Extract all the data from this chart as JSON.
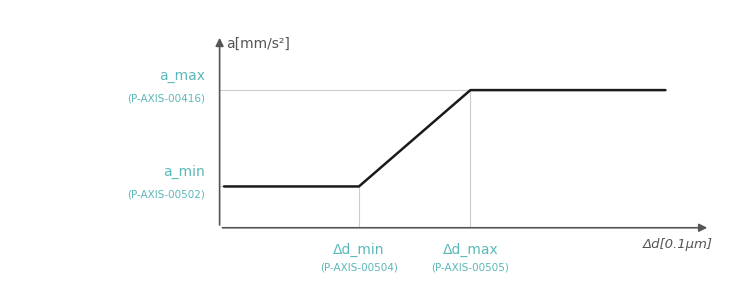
{
  "bg_color": "#ffffff",
  "line_color": "#1a1a1a",
  "grid_line_color": "#cccccc",
  "label_main_color": "#5bb8b8",
  "label_sub_color": "#5bb8b8",
  "axis_color": "#555555",
  "ylabel_text": "a[mm/s²]",
  "xlabel_text": "Δd[0.1μm]",
  "a_max_label": "a_max",
  "a_max_sublabel": "(P-AXIS-00416)",
  "a_min_label": "a_min",
  "a_min_sublabel": "(P-AXIS-00502)",
  "dd_min_label": "Δd_min",
  "dd_min_sublabel": "(P-AXIS-00504)",
  "dd_max_label": "Δd_max",
  "dd_max_sublabel": "(P-AXIS-00505)",
  "x_start": 0.0,
  "x_dd_min": 2.5,
  "x_dd_max": 4.5,
  "x_end": 8.0,
  "y_a_min": 1.5,
  "y_a_max": 5.0,
  "xmin": 0.0,
  "xmax": 8.8,
  "ymin": 0.0,
  "ymax": 7.0
}
